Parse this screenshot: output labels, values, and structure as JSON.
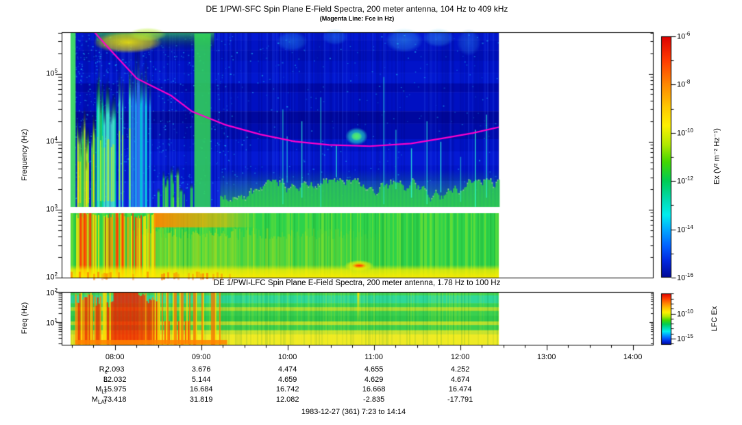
{
  "figure": {
    "title": "DE 1/PWI-SFC  Spin Plane E-Field Spectra, 200 meter antenna, 104 Hz to 409 kHz",
    "subtitle": "(Magenta Line: Fce in Hz)",
    "footer": "1983-12-27 (361) 7:23 to 14:14"
  },
  "chart_data": {
    "type": "heatmap",
    "panels": [
      {
        "id": "sfc",
        "title": "DE 1/PWI-SFC  Spin Plane E-Field Spectra, 200 meter antenna, 104 Hz to 409 kHz",
        "ylabel": "Frequency (Hz)",
        "freq_range_hz": [
          104,
          409000
        ],
        "yticks": [
          {
            "base": "10",
            "exp": "5",
            "hz": 100000
          },
          {
            "base": "10",
            "exp": "4",
            "hz": 10000
          },
          {
            "base": "10",
            "exp": "3",
            "hz": 1000
          },
          {
            "base": "10",
            "exp": "2",
            "hz": 100
          }
        ],
        "colorbar": {
          "label": "Ex (V² m⁻² Hz⁻¹)",
          "range_exp": [
            -6,
            -16
          ],
          "ticks": [
            {
              "base": "10",
              "exp": "-6",
              "v": -6
            },
            {
              "base": "10",
              "exp": "-8",
              "v": -8
            },
            {
              "base": "10",
              "exp": "-10",
              "v": -10
            },
            {
              "base": "10",
              "exp": "-12",
              "v": -12
            },
            {
              "base": "10",
              "exp": "-14",
              "v": -14
            },
            {
              "base": "10",
              "exp": "-16",
              "v": -16
            }
          ]
        }
      },
      {
        "id": "lfc",
        "title": "DE 1/PWI-LFC  Spin Plane E-Field Spectra, 200 meter antenna, 1.78 Hz to 100 Hz",
        "ylabel": "Freq (Hz)",
        "freq_range_hz": [
          1.78,
          100
        ],
        "yticks": [
          {
            "base": "10",
            "exp": "2",
            "hz": 100
          },
          {
            "base": "10",
            "exp": "1",
            "hz": 10
          }
        ],
        "colorbar": {
          "label": "LFC Ex",
          "ticks": [
            {
              "base": "10",
              "exp": "-10",
              "v": -10
            },
            {
              "base": "10",
              "exp": "-15",
              "v": -15
            }
          ]
        }
      }
    ],
    "time_axis": {
      "start": "07:23",
      "end": "14:14",
      "start_h": 7.3833,
      "end_h": 14.2333,
      "data_start_h": 7.486,
      "data_end_h": 12.45,
      "minor_tick_minutes": 15,
      "ticks": [
        {
          "label": "08:00",
          "h": 8
        },
        {
          "label": "09:00",
          "h": 9
        },
        {
          "label": "10:00",
          "h": 10
        },
        {
          "label": "11:00",
          "h": 11
        },
        {
          "label": "12:00",
          "h": 12
        },
        {
          "label": "13:00",
          "h": 13
        },
        {
          "label": "14:00",
          "h": 14
        }
      ]
    },
    "fce_line": {
      "label": "Fce in Hz",
      "color": "#ff00cc",
      "points_t_hz": [
        [
          7.69,
          650000
        ],
        [
          7.764,
          409000
        ],
        [
          7.939,
          230000
        ],
        [
          8.256,
          85000
        ],
        [
          8.653,
          47600
        ],
        [
          8.891,
          28000
        ],
        [
          9.288,
          17600
        ],
        [
          9.685,
          12800
        ],
        [
          10.082,
          10100
        ],
        [
          10.479,
          9000
        ],
        [
          10.955,
          8600
        ],
        [
          11.431,
          9400
        ],
        [
          11.828,
          11400
        ],
        [
          12.146,
          13400
        ],
        [
          12.448,
          16400
        ]
      ]
    },
    "colormap_stops": [
      [
        0,
        "#dd0000"
      ],
      [
        0.1,
        "#ff3c00"
      ],
      [
        0.2,
        "#ff8800"
      ],
      [
        0.3,
        "#ffcc00"
      ],
      [
        0.37,
        "#fdf000"
      ],
      [
        0.45,
        "#b0e800"
      ],
      [
        0.52,
        "#44d800"
      ],
      [
        0.6,
        "#00cc55"
      ],
      [
        0.68,
        "#00dcb4"
      ],
      [
        0.74,
        "#00eeee"
      ],
      [
        0.8,
        "#00aaff"
      ],
      [
        0.87,
        "#0060ff"
      ],
      [
        0.93,
        "#0028e0"
      ],
      [
        1,
        "#000896"
      ]
    ],
    "ephemeris": {
      "column_hours": [
        8,
        9,
        10,
        11,
        12
      ],
      "columns": [
        "08:00",
        "09:00",
        "10:00",
        "11:00",
        "12:00"
      ],
      "rows": [
        {
          "label": "R",
          "sub": "e",
          "values": [
            "2.093",
            "3.676",
            "4.474",
            "4.655",
            "4.252"
          ]
        },
        {
          "label": "L",
          "sub": "",
          "values": [
            "32.032",
            "5.144",
            "4.659",
            "4.629",
            "4.674"
          ]
        },
        {
          "label": "M",
          "sub": "LT",
          "values": [
            "15.975",
            "16.684",
            "16.742",
            "16.668",
            "16.474"
          ]
        },
        {
          "label": "M",
          "sub": "LAT",
          "values": [
            "73.418",
            "31.819",
            "12.082",
            "-2.835",
            "-17.791"
          ]
        }
      ]
    },
    "features": {
      "sfc_above_gap": {
        "base_stripes": [
          [
            0.0,
            0.04,
            "#0318d2"
          ],
          [
            0.04,
            0.1,
            "#0113c6"
          ],
          [
            0.1,
            0.16,
            "#0010bb"
          ],
          [
            0.16,
            0.23,
            "#0113c9"
          ],
          [
            0.23,
            0.29,
            "#0217d0"
          ],
          [
            0.29,
            0.34,
            "#000aae"
          ],
          [
            0.34,
            0.45,
            "#0010c2"
          ],
          [
            0.45,
            0.52,
            "#00089f"
          ],
          [
            0.52,
            0.61,
            "#000caf"
          ],
          [
            0.61,
            0.68,
            "#0113c8"
          ],
          [
            0.68,
            0.76,
            "#0419d4"
          ],
          [
            0.76,
            0.85,
            "#0215cb"
          ],
          [
            0.85,
            1.0,
            "#0a20da"
          ]
        ],
        "vbands": [
          {
            "t0": 7.486,
            "t1": 7.545,
            "f0": 104,
            "f1": 400000,
            "color": "#44e066",
            "alpha": 0.95
          },
          {
            "t0": 8.92,
            "t1": 9.11,
            "f0": 104,
            "f1": 390000,
            "color": "#33d955",
            "alpha": 0.85
          }
        ],
        "burst_groups": [
          {
            "t0": 7.555,
            "t1": 7.78,
            "ftop": [
              5000,
              38000
            ],
            "n": 16,
            "seed": 11,
            "colors": [
              "#22cc55",
              "#55dd44",
              "#bbee22"
            ],
            "cores": [
              "#ffdd00"
            ]
          },
          {
            "t0": 7.78,
            "t1": 8.18,
            "ftop": [
              40000,
              160000
            ],
            "n": 24,
            "seed": 12,
            "colors": [
              "#22cc66",
              "#00ddaa",
              "#44ddcc"
            ],
            "cores": [
              "#aaee33"
            ]
          },
          {
            "t0": 8.18,
            "t1": 8.47,
            "ftop": [
              90000,
              260000
            ],
            "n": 14,
            "seed": 13,
            "colors": [
              "#2299ee",
              "#00ccdd",
              "#3366ee"
            ],
            "cores": []
          },
          {
            "t0": 8.47,
            "t1": 8.9,
            "ftop": [
              1500,
              6000
            ],
            "n": 12,
            "seed": 14,
            "colors": [
              "#22cc55",
              "#55dd44"
            ],
            "cores": []
          }
        ],
        "top_band": {
          "t0": 7.78,
          "t1": 9.15,
          "f0": 340000,
          "f1": 409000,
          "color": "#33cc55",
          "alpha": 0.75
        },
        "blobs": [
          {
            "t": 8.15,
            "f": 290000,
            "dt": 0.4,
            "dflog": 0.16,
            "color": "#ffee00",
            "alpha": 0.85
          },
          {
            "t": 8.38,
            "f": 380000,
            "dt": 0.22,
            "dflog": 0.1,
            "color": "#bbee33",
            "alpha": 0.7
          },
          {
            "t": 10.05,
            "f": 300000,
            "dt": 0.18,
            "dflog": 0.15,
            "color": "#33bbff",
            "alpha": 0.35
          },
          {
            "t": 10.55,
            "f": 350000,
            "dt": 0.15,
            "dflog": 0.12,
            "color": "#33bbff",
            "alpha": 0.3
          },
          {
            "t": 11.35,
            "f": 310000,
            "dt": 0.22,
            "dflog": 0.18,
            "color": "#44ccff",
            "alpha": 0.4
          },
          {
            "t": 11.75,
            "f": 340000,
            "dt": 0.18,
            "dflog": 0.14,
            "color": "#44ccff",
            "alpha": 0.35
          },
          {
            "t": 12.1,
            "f": 290000,
            "dt": 0.14,
            "dflog": 0.2,
            "color": "#3399ee",
            "alpha": 0.35
          },
          {
            "t": 10.8,
            "f": 12000,
            "dt": 0.13,
            "dflog": 0.13,
            "color": "#22ddcc",
            "alpha": 0.95,
            "core": "#55ee66"
          }
        ],
        "wall": {
          "t0": 9.22,
          "t1": 12.45,
          "hmin": 8,
          "hmax": 40,
          "color": "#2ed14e",
          "seed": 15
        },
        "vlines": [
          [
            9.94,
            1200,
            30000
          ],
          [
            9.99,
            2500,
            12000
          ],
          [
            10.16,
            1500,
            20000
          ],
          [
            10.38,
            1100,
            45000
          ],
          [
            10.56,
            3000,
            9000
          ],
          [
            11.11,
            1200,
            90000
          ],
          [
            11.25,
            2000,
            15000
          ],
          [
            11.43,
            1500,
            8000
          ],
          [
            11.61,
            1200,
            20000
          ],
          [
            11.77,
            1800,
            10000
          ],
          [
            12.0,
            1300,
            6000
          ],
          [
            12.17,
            1100,
            15000
          ],
          [
            12.3,
            1500,
            25000
          ]
        ],
        "speckle_seed": 16
      },
      "sfc_gap_hz": [
        880,
        1100
      ],
      "sfc_below_gap": {
        "base_color": "#2dd24b",
        "burst_zone": {
          "t0": 7.55,
          "t1": 8.47,
          "seed": 21
        },
        "red_streaks": [
          7.6,
          7.645,
          7.71,
          8.02,
          8.085
        ],
        "orange_band": {
          "t0": 8.45,
          "t1": 9.32,
          "f0": 550,
          "f1": 950
        },
        "streak_field": {
          "t0": 8.2,
          "t1": 11.2,
          "seed": 22
        },
        "bottom_band_f": 140,
        "yellow_blob": {
          "t": 10.83,
          "f": 150,
          "dt": 0.17,
          "core_color": "#ff8800"
        }
      },
      "lfc": {
        "stripes": [
          [
            0.0,
            0.05,
            "#44d455"
          ],
          [
            0.05,
            0.2,
            "#2fd898"
          ],
          [
            0.2,
            0.28,
            "#37d355"
          ],
          [
            0.28,
            0.35,
            "#a8dd33"
          ],
          [
            0.35,
            0.44,
            "#3ad04f"
          ],
          [
            0.44,
            0.55,
            "#2fc94a"
          ],
          [
            0.55,
            0.62,
            "#b5de30"
          ],
          [
            0.62,
            0.72,
            "#3ecf4b"
          ],
          [
            0.72,
            0.8,
            "#c8e22e"
          ],
          [
            0.8,
            1.0,
            "#eeea26"
          ]
        ],
        "red_zone": {
          "t0": 7.54,
          "t1": 8.51,
          "solid_t0": 7.98,
          "solid_t1": 8.26,
          "seed": 31
        },
        "streak_zone": {
          "t0": 8.51,
          "t1": 9.3,
          "seed": 32
        },
        "bright_col_t": 10.82,
        "jitter_seed": 33
      }
    }
  }
}
